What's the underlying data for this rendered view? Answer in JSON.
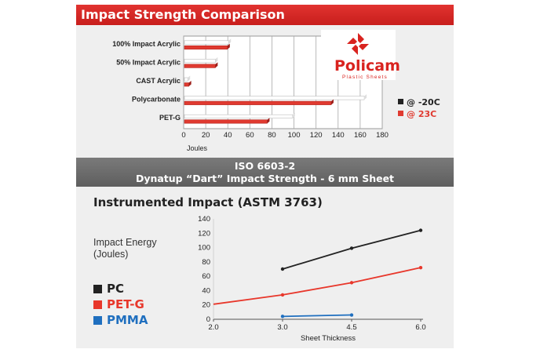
{
  "header": {
    "title": "Impact Strength Comparison"
  },
  "logo": {
    "name": "Policam",
    "sub": "Plastic Sheets"
  },
  "band": {
    "line1": "ISO 6603-2",
    "line2": "Dynatup “Dart” Impact Strength - 6 mm Sheet"
  },
  "colors": {
    "header_red": "#d42a27",
    "bar_red": "#e03a30",
    "bar_white": "#ffffff",
    "pc": "#222222",
    "petg": "#e8372b",
    "pmma": "#1f6fbf"
  },
  "chart_data": [
    {
      "type": "bar",
      "orientation": "horizontal",
      "title": "Impact Strength Comparison",
      "xlabel": "Joules",
      "xlim": [
        0,
        180
      ],
      "xticks": [
        "0",
        "20",
        "40",
        "60",
        "80",
        "100",
        "120",
        "140",
        "160",
        "180"
      ],
      "categories": [
        "100% Impact Acrylic",
        "50% Impact Acrylic",
        "CAST Acrylic",
        "Polycarbonate",
        "PET-G"
      ],
      "series": [
        {
          "name": "@ -20C",
          "color": "#ffffff",
          "values": [
            40,
            28,
            3,
            163,
            98
          ]
        },
        {
          "name": "@ 23C",
          "color": "#e03a30",
          "values": [
            39,
            28,
            4,
            133,
            75
          ]
        }
      ],
      "legend_position": "right",
      "grid": true
    },
    {
      "type": "line",
      "title": "Instrumented Impact (ASTM 3763)",
      "xlabel": "Sheet Thickness",
      "ylabel": "Impact Energy (Joules)",
      "xticks": [
        "2.0",
        "3.0",
        "4.5",
        "6.0"
      ],
      "xlim": [
        2.0,
        6.0
      ],
      "ylim": [
        0,
        140
      ],
      "yticks": [
        "0",
        "20",
        "40",
        "60",
        "80",
        "100",
        "120",
        "140"
      ],
      "series": [
        {
          "name": "PC",
          "color": "#222222",
          "x": [
            3.0,
            4.5,
            6.0
          ],
          "y": [
            70,
            99,
            124
          ]
        },
        {
          "name": "PET-G",
          "color": "#e8372b",
          "x": [
            2.0,
            3.0,
            4.5,
            6.0
          ],
          "y": [
            21,
            34,
            51,
            72
          ]
        },
        {
          "name": "PMMA",
          "color": "#1f6fbf",
          "x": [
            3.0,
            4.5
          ],
          "y": [
            4,
            6
          ]
        }
      ],
      "legend_position": "left"
    }
  ]
}
